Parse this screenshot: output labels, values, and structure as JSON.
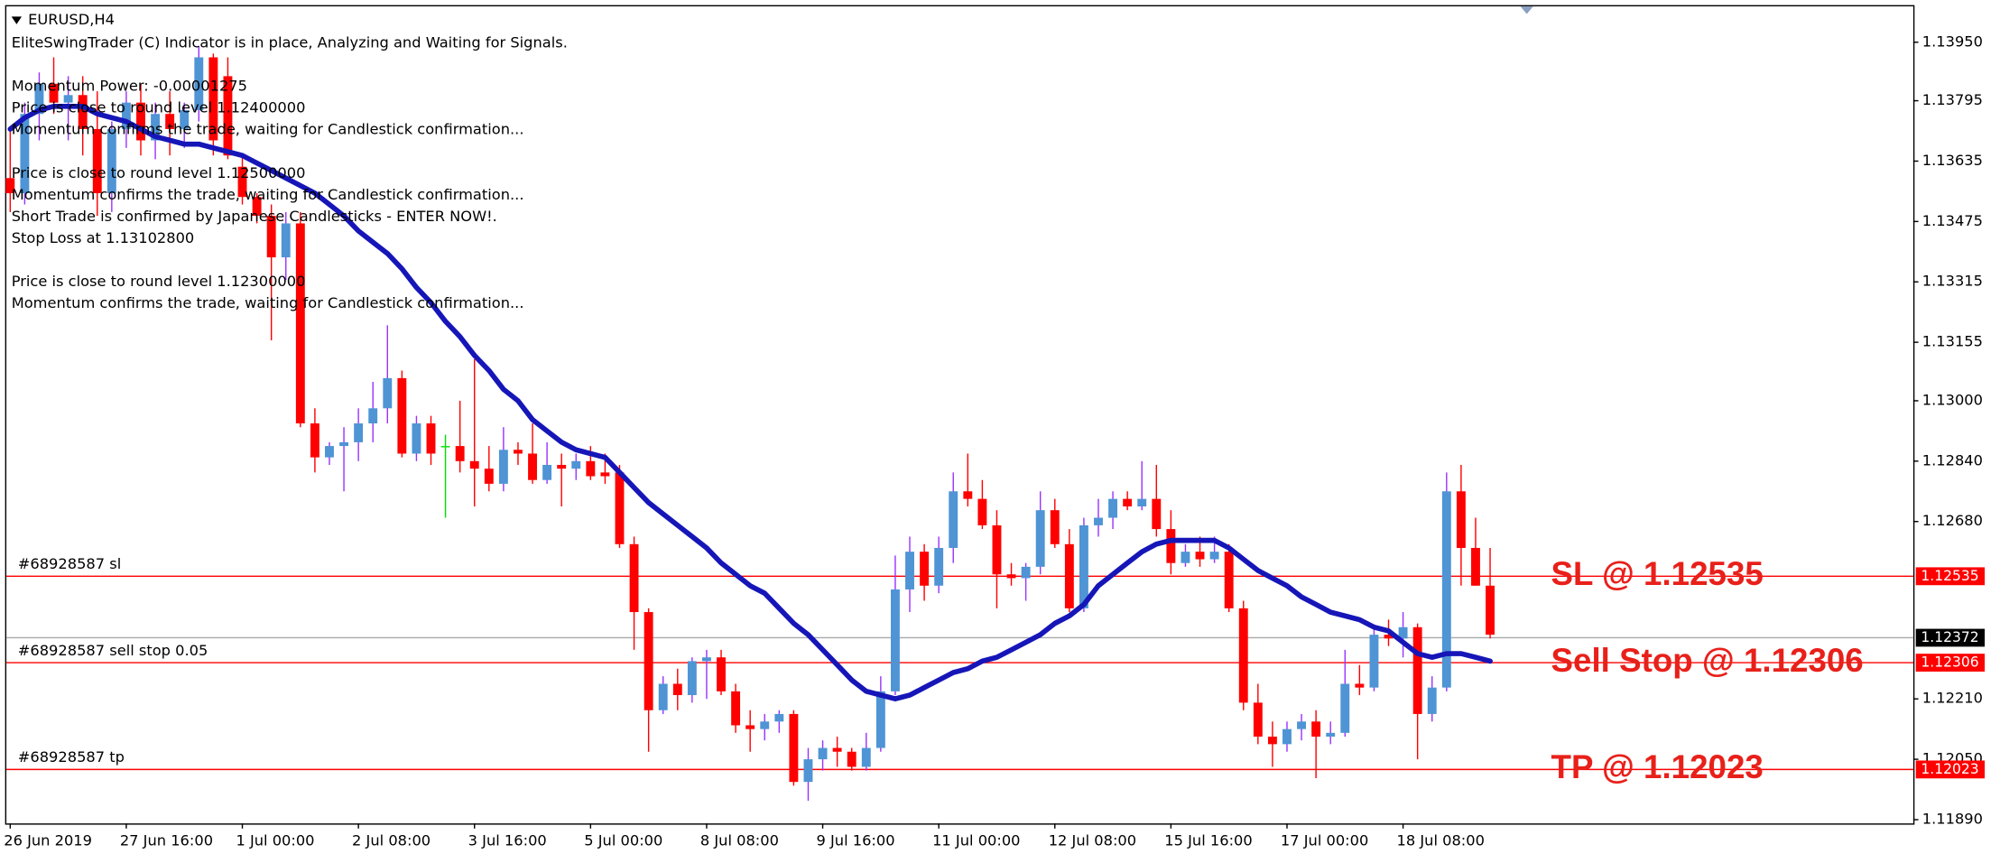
{
  "chart_data": {
    "type": "candlestick",
    "symbol": "EURUSD,H4",
    "comments": [
      "EliteSwingTrader (C) Indicator is in place, Analyzing and Waiting for Signals.",
      "Momentum Power: -0.00001275",
      "Price is close to round level 1.12400000",
      "Momentum confirms the trade, waiting for Candlestick confirmation...",
      "Price is close to round level 1.12500000",
      "Momentum confirms the trade, waiting for Candlestick confirmation...",
      "Short Trade is confirmed by Japanese Candlesticks - ENTER NOW!.",
      "Stop Loss at 1.13102800",
      "Price is close to round level 1.12300000",
      "Momentum confirms the trade, waiting for Candlestick confirmation..."
    ],
    "categories": [
      "26 Jun 2019",
      null,
      null,
      null,
      null,
      null,
      null,
      null,
      "27 Jun 16:00",
      null,
      null,
      null,
      null,
      null,
      null,
      null,
      "1 Jul 00:00",
      null,
      null,
      null,
      null,
      null,
      null,
      null,
      "2 Jul 08:00",
      null,
      null,
      null,
      null,
      null,
      null,
      null,
      "3 Jul 16:00",
      null,
      null,
      null,
      null,
      null,
      null,
      null,
      "5 Jul 00:00",
      null,
      null,
      null,
      null,
      null,
      null,
      null,
      "8 Jul 08:00",
      null,
      null,
      null,
      null,
      null,
      null,
      null,
      "9 Jul 16:00",
      null,
      null,
      null,
      null,
      null,
      null,
      null,
      "11 Jul 00:00",
      null,
      null,
      null,
      null,
      null,
      null,
      null,
      "12 Jul 08:00",
      null,
      null,
      null,
      null,
      null,
      null,
      null,
      "15 Jul 16:00",
      null,
      null,
      null,
      null,
      null,
      null,
      null,
      "17 Jul 00:00",
      null,
      null,
      null,
      null,
      null,
      null,
      null,
      "18 Jul 08:00",
      null,
      null,
      null,
      null,
      null,
      null
    ],
    "open": [
      1.1359,
      1.1355,
      1.1376,
      1.1384,
      1.1379,
      1.1381,
      1.1372,
      1.1355,
      1.1372,
      1.1379,
      1.1369,
      1.1376,
      1.1372,
      1.1377,
      1.1391,
      1.1386,
      1.1362,
      1.1354,
      1.1349,
      1.1338,
      1.1347,
      1.1294,
      1.1285,
      1.1288,
      1.1289,
      1.1294,
      1.1298,
      1.1306,
      1.1286,
      1.1294,
      1.1288,
      1.1288,
      1.1284,
      1.1282,
      1.1278,
      1.1287,
      1.1286,
      1.1279,
      1.1283,
      1.1282,
      1.1284,
      1.1281,
      1.1281,
      1.1262,
      1.1244,
      1.1218,
      1.1225,
      1.1222,
      1.1231,
      1.1232,
      1.1223,
      1.1214,
      1.1213,
      1.1215,
      1.1217,
      1.1199,
      1.1205,
      1.1208,
      1.1207,
      1.1203,
      1.1208,
      1.1223,
      1.125,
      1.126,
      1.1251,
      1.1261,
      1.1276,
      1.1274,
      1.1267,
      1.1254,
      1.1253,
      1.1256,
      1.1271,
      1.1262,
      1.1245,
      1.1267,
      1.1269,
      1.1274,
      1.1272,
      1.1274,
      1.1266,
      1.1257,
      1.126,
      1.1258,
      1.126,
      1.1245,
      1.122,
      1.1211,
      1.1209,
      1.1213,
      1.1215,
      1.1211,
      1.1212,
      1.1225,
      1.1224,
      1.1238,
      1.1237,
      1.124,
      1.1217,
      1.1224,
      1.1276,
      1.1261,
      1.1251
    ],
    "high": [
      1.1372,
      1.1379,
      1.1387,
      1.1391,
      1.1386,
      1.1386,
      1.1382,
      1.1374,
      1.1382,
      1.1384,
      1.1379,
      1.1382,
      1.1379,
      1.1394,
      1.1392,
      1.1391,
      1.1365,
      1.1355,
      1.1352,
      1.135,
      1.135,
      1.1298,
      1.1289,
      1.1293,
      1.1298,
      1.1305,
      1.132,
      1.1308,
      1.1296,
      1.1296,
      1.1291,
      1.13,
      1.1311,
      1.1288,
      1.1293,
      1.1289,
      1.1294,
      1.1289,
      1.1286,
      1.1286,
      1.1288,
      1.1286,
      1.1283,
      1.1264,
      1.1245,
      1.1227,
      1.1229,
      1.1232,
      1.1234,
      1.1234,
      1.1225,
      1.1218,
      1.1217,
      1.1218,
      1.1218,
      1.1208,
      1.121,
      1.1211,
      1.1208,
      1.1212,
      1.1227,
      1.1259,
      1.1264,
      1.1262,
      1.1264,
      1.1281,
      1.1286,
      1.1279,
      1.1271,
      1.1257,
      1.1257,
      1.1276,
      1.1274,
      1.1266,
      1.1269,
      1.1274,
      1.1276,
      1.1276,
      1.1284,
      1.1283,
      1.1271,
      1.1262,
      1.1264,
      1.1264,
      1.1262,
      1.1247,
      1.1225,
      1.1215,
      1.1215,
      1.1217,
      1.1218,
      1.1215,
      1.1234,
      1.123,
      1.124,
      1.1242,
      1.1244,
      1.1241,
      1.1227,
      1.1281,
      1.1283,
      1.1269,
      1.1261
    ],
    "low": [
      1.135,
      1.1352,
      1.1369,
      1.1376,
      1.1369,
      1.1365,
      1.1349,
      1.135,
      1.1367,
      1.1365,
      1.1364,
      1.1365,
      1.1367,
      1.1374,
      1.1365,
      1.1364,
      1.1352,
      1.1347,
      1.1316,
      1.1332,
      1.1293,
      1.1281,
      1.1283,
      1.1276,
      1.1284,
      1.1289,
      1.1294,
      1.1285,
      1.1284,
      1.1283,
      1.1269,
      1.1281,
      1.1272,
      1.1276,
      1.1276,
      1.1283,
      1.1278,
      1.1278,
      1.1272,
      1.1279,
      1.1279,
      1.1278,
      1.1261,
      1.1234,
      1.1207,
      1.1217,
      1.1218,
      1.122,
      1.1221,
      1.1222,
      1.1212,
      1.1207,
      1.121,
      1.1212,
      1.1198,
      1.1194,
      1.1202,
      1.1203,
      1.1202,
      1.1202,
      1.1207,
      1.1222,
      1.1244,
      1.1247,
      1.1249,
      1.1257,
      1.1272,
      1.1266,
      1.1245,
      1.1251,
      1.1247,
      1.1254,
      1.1261,
      1.1244,
      1.1244,
      1.1264,
      1.1266,
      1.1271,
      1.1271,
      1.1264,
      1.1254,
      1.1256,
      1.1256,
      1.1257,
      1.1244,
      1.1218,
      1.1209,
      1.1203,
      1.1207,
      1.121,
      1.12,
      1.1209,
      1.1211,
      1.1222,
      1.1223,
      1.1235,
      1.1232,
      1.1205,
      1.1215,
      1.1223,
      1.1251,
      1.1251,
      1.1237
    ],
    "close": [
      1.1355,
      1.1376,
      1.1384,
      1.1379,
      1.1381,
      1.1372,
      1.1355,
      1.1372,
      1.1379,
      1.1369,
      1.1376,
      1.1372,
      1.1377,
      1.1391,
      1.1369,
      1.1365,
      1.1354,
      1.1349,
      1.1338,
      1.1347,
      1.1294,
      1.1285,
      1.1288,
      1.1289,
      1.1294,
      1.1298,
      1.1306,
      1.1286,
      1.1294,
      1.1286,
      1.1288,
      1.1284,
      1.1282,
      1.1278,
      1.1287,
      1.1286,
      1.1279,
      1.1283,
      1.1282,
      1.1284,
      1.128,
      1.128,
      1.1262,
      1.1244,
      1.1218,
      1.1225,
      1.1222,
      1.1231,
      1.1232,
      1.1223,
      1.1214,
      1.1213,
      1.1215,
      1.1217,
      1.1199,
      1.1205,
      1.1208,
      1.1207,
      1.1203,
      1.1208,
      1.1223,
      1.125,
      1.126,
      1.1251,
      1.1261,
      1.1276,
      1.1274,
      1.1267,
      1.1254,
      1.1253,
      1.1256,
      1.1271,
      1.1262,
      1.1245,
      1.1267,
      1.1269,
      1.1274,
      1.1272,
      1.1274,
      1.1266,
      1.1257,
      1.126,
      1.1258,
      1.126,
      1.1245,
      1.122,
      1.1211,
      1.1209,
      1.1213,
      1.1215,
      1.1211,
      1.1212,
      1.1225,
      1.1224,
      1.1238,
      1.1237,
      1.124,
      1.1217,
      1.1224,
      1.1276,
      1.1261,
      1.1251,
      1.1238
    ],
    "up_color": "#4f94d4",
    "down_color": "#ff0000",
    "up_wick_color": "#9933ff",
    "doji_color": "#00e000",
    "ma": {
      "color": "#1616b8",
      "values": [
        1.1372,
        1.1375,
        1.1377,
        1.1378,
        1.1378,
        1.1378,
        1.1376,
        1.1375,
        1.1374,
        1.1372,
        1.137,
        1.1369,
        1.1368,
        1.1368,
        1.1367,
        1.1366,
        1.1365,
        1.1363,
        1.1361,
        1.1359,
        1.1357,
        1.1355,
        1.1352,
        1.1349,
        1.1345,
        1.1342,
        1.1339,
        1.1335,
        1.133,
        1.1326,
        1.1321,
        1.1317,
        1.1312,
        1.1308,
        1.1303,
        1.13,
        1.1295,
        1.1292,
        1.1289,
        1.1287,
        1.1286,
        1.1285,
        1.1281,
        1.1277,
        1.1273,
        1.127,
        1.1267,
        1.1264,
        1.1261,
        1.1257,
        1.1254,
        1.1251,
        1.1249,
        1.1245,
        1.1241,
        1.1238,
        1.1234,
        1.123,
        1.1226,
        1.1223,
        1.1222,
        1.1221,
        1.1222,
        1.1224,
        1.1226,
        1.1228,
        1.1229,
        1.1231,
        1.1232,
        1.1234,
        1.1236,
        1.1238,
        1.1241,
        1.1243,
        1.1246,
        1.1251,
        1.1254,
        1.1257,
        1.126,
        1.1262,
        1.1263,
        1.1263,
        1.1263,
        1.1263,
        1.1261,
        1.1258,
        1.1255,
        1.1253,
        1.1251,
        1.1248,
        1.1246,
        1.1244,
        1.1243,
        1.1242,
        1.124,
        1.1239,
        1.1236,
        1.1233,
        1.1232,
        1.1233,
        1.1233,
        1.1232,
        1.1231
      ]
    },
    "ylim": [
      1.1188,
      1.14045
    ],
    "yticks": [
      {
        "value": 1.1395,
        "label": "1.13950"
      },
      1.13795,
      1.13635,
      1.13475,
      1.13315,
      1.13155,
      {
        "value": 1.13,
        "label": "1.13000"
      },
      {
        "value": 1.1284,
        "label": "1.12840"
      },
      {
        "value": 1.1268,
        "label": "1.12680"
      },
      {
        "value": 1.1221,
        "label": "1.12210"
      },
      {
        "value": 1.1205,
        "label": "1.12050"
      },
      {
        "value": 1.1189,
        "label": "1.11890"
      }
    ],
    "orders": [
      {
        "label": "#68928587 sl",
        "value": 1.12535,
        "tag": "SL @ 1.12535",
        "color": "#ff0000"
      },
      {
        "label": "#68928587 sell stop 0.05",
        "value": 1.12306,
        "tag": "Sell Stop @ 1.12306",
        "color": "#ff0000"
      },
      {
        "label": "#68928587 tp",
        "value": 1.12023,
        "tag": "TP @ 1.12023",
        "color": "#ff0000"
      }
    ],
    "last_price": {
      "value": 1.12372,
      "color": "#a8a8a8",
      "box_color": "#000000"
    }
  }
}
